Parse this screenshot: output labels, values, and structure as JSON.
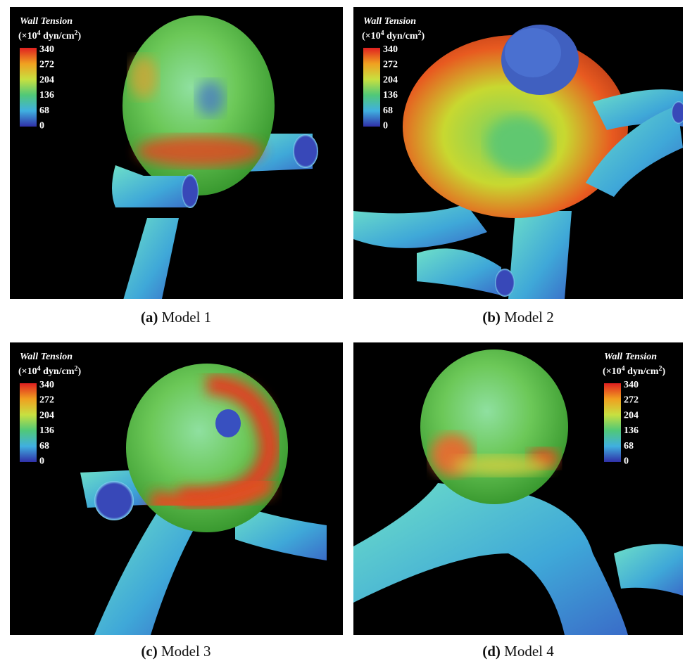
{
  "legend": {
    "title": "Wall Tension",
    "unit": [
      "(×10",
      "4",
      " dyn/cm",
      "2",
      ")"
    ],
    "ticks": [
      "340",
      "272",
      "204",
      "136",
      "68",
      "0"
    ]
  },
  "panels": [
    {
      "letter": "(a)",
      "caption": "Model 1"
    },
    {
      "letter": "(b)",
      "caption": "Model 2"
    },
    {
      "letter": "(c)",
      "caption": "Model 3"
    },
    {
      "letter": "(d)",
      "caption": "Model 4"
    }
  ]
}
